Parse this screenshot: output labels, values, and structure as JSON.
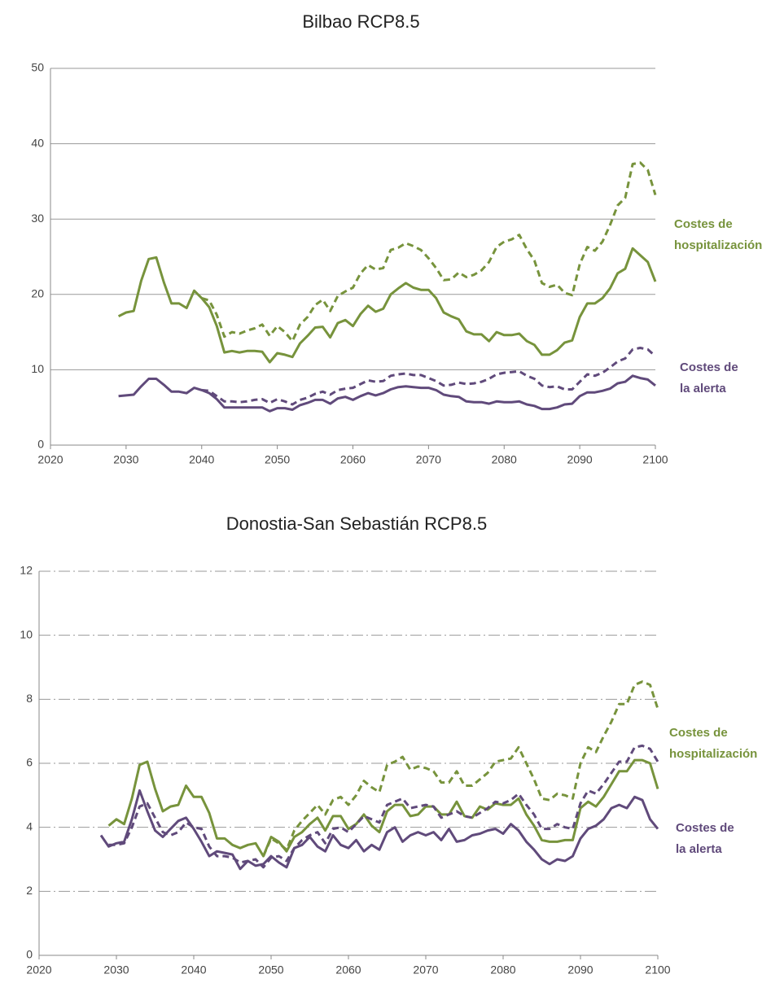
{
  "chart_data": [
    {
      "type": "line",
      "title": "Bilbao RCP8.5",
      "xlim": [
        2020,
        2100
      ],
      "xticks": [
        2020,
        2030,
        2040,
        2050,
        2060,
        2070,
        2080,
        2090,
        2100
      ],
      "ylim": [
        0,
        50
      ],
      "yticks": [
        0,
        10,
        20,
        30,
        40,
        50
      ],
      "grid": true,
      "grid_style": "solid",
      "x": [
        2029,
        2030,
        2031,
        2032,
        2033,
        2034,
        2035,
        2036,
        2037,
        2038,
        2039,
        2040,
        2041,
        2042,
        2043,
        2044,
        2045,
        2046,
        2047,
        2048,
        2049,
        2050,
        2051,
        2052,
        2053,
        2054,
        2055,
        2056,
        2057,
        2058,
        2059,
        2060,
        2061,
        2062,
        2063,
        2064,
        2065,
        2066,
        2067,
        2068,
        2069,
        2070,
        2071,
        2072,
        2073,
        2074,
        2075,
        2076,
        2077,
        2078,
        2079,
        2080,
        2081,
        2082,
        2083,
        2084,
        2085,
        2086,
        2087,
        2088,
        2089,
        2090,
        2091,
        2092,
        2093,
        2094,
        2095,
        2096,
        2097,
        2098,
        2099,
        2100
      ],
      "series": [
        {
          "color": "#77933c",
          "dash": true,
          "values": [
            null,
            null,
            null,
            null,
            null,
            null,
            null,
            null,
            null,
            null,
            null,
            19.5,
            19.2,
            17.3,
            14.4,
            15.0,
            14.8,
            15.2,
            15.5,
            16.0,
            14.5,
            15.8,
            15.0,
            13.8,
            16.0,
            17.0,
            18.6,
            19.3,
            17.8,
            19.8,
            20.4,
            20.9,
            22.8,
            23.9,
            23.3,
            23.5,
            25.9,
            26.2,
            26.8,
            26.4,
            25.9,
            24.8,
            23.5,
            21.9,
            22.0,
            22.9,
            22.3,
            22.6,
            23.2,
            24.3,
            26.3,
            27.0,
            27.3,
            27.9,
            26.0,
            24.5,
            21.5,
            21.0,
            21.3,
            20.2,
            19.9,
            24.0,
            26.3,
            25.8,
            27.0,
            29.2,
            31.8,
            32.8,
            37.3,
            37.5,
            36.5,
            33.2
          ]
        },
        {
          "color": "#77933c",
          "dash": false,
          "values": [
            17.1,
            17.6,
            17.8,
            21.8,
            24.7,
            24.9,
            21.6,
            18.8,
            18.8,
            18.2,
            20.5,
            19.5,
            18.3,
            15.8,
            12.3,
            12.5,
            12.3,
            12.5,
            12.5,
            12.4,
            11.0,
            12.2,
            12.0,
            11.7,
            13.5,
            14.5,
            15.6,
            15.7,
            14.3,
            16.2,
            16.6,
            15.8,
            17.4,
            18.5,
            17.7,
            18.1,
            20.0,
            20.8,
            21.5,
            20.9,
            20.6,
            20.6,
            19.5,
            17.6,
            17.1,
            16.7,
            15.1,
            14.7,
            14.7,
            13.8,
            15.0,
            14.6,
            14.6,
            14.8,
            13.8,
            13.3,
            12.0,
            12.0,
            12.6,
            13.6,
            13.9,
            17.0,
            18.8,
            18.8,
            19.5,
            20.8,
            22.8,
            23.4,
            26.1,
            25.2,
            24.3,
            21.7
          ]
        },
        {
          "color": "#604a7b",
          "dash": true,
          "values": [
            null,
            null,
            null,
            null,
            null,
            null,
            null,
            null,
            null,
            null,
            null,
            7.3,
            7.2,
            6.5,
            5.8,
            5.8,
            5.7,
            5.8,
            6.0,
            6.1,
            5.6,
            6.1,
            5.8,
            5.4,
            6.0,
            6.3,
            6.8,
            7.1,
            6.7,
            7.3,
            7.5,
            7.6,
            8.1,
            8.6,
            8.4,
            8.5,
            9.2,
            9.4,
            9.5,
            9.3,
            9.3,
            8.9,
            8.5,
            7.9,
            8.0,
            8.3,
            8.1,
            8.2,
            8.4,
            8.8,
            9.4,
            9.6,
            9.7,
            9.8,
            9.2,
            8.8,
            7.9,
            7.7,
            7.8,
            7.4,
            7.4,
            8.4,
            9.4,
            9.2,
            9.6,
            10.3,
            11.1,
            11.5,
            12.7,
            12.9,
            12.7,
            11.8
          ]
        },
        {
          "color": "#604a7b",
          "dash": false,
          "values": [
            6.5,
            6.6,
            6.7,
            7.8,
            8.8,
            8.8,
            8.0,
            7.1,
            7.1,
            6.9,
            7.6,
            7.3,
            6.9,
            6.1,
            5.0,
            5.0,
            5.0,
            5.0,
            5.0,
            5.0,
            4.5,
            4.9,
            4.9,
            4.7,
            5.3,
            5.6,
            6.0,
            6.0,
            5.5,
            6.2,
            6.4,
            6.0,
            6.5,
            6.9,
            6.6,
            6.9,
            7.4,
            7.7,
            7.8,
            7.7,
            7.6,
            7.6,
            7.3,
            6.7,
            6.5,
            6.4,
            5.8,
            5.7,
            5.7,
            5.5,
            5.8,
            5.7,
            5.7,
            5.8,
            5.4,
            5.2,
            4.8,
            4.8,
            5.0,
            5.4,
            5.5,
            6.5,
            7.0,
            7.0,
            7.2,
            7.5,
            8.2,
            8.4,
            9.2,
            8.9,
            8.7,
            7.9
          ]
        }
      ],
      "annotations": [
        {
          "text": "Costes de hospitalización",
          "color": "#77933c"
        },
        {
          "text": "Costes de la alerta",
          "color": "#604a7b"
        }
      ]
    },
    {
      "type": "line",
      "title": "Donostia-San Sebastián RCP8.5",
      "xlim": [
        2020,
        2100
      ],
      "xticks": [
        2020,
        2030,
        2040,
        2050,
        2060,
        2070,
        2080,
        2090,
        2100
      ],
      "ylim": [
        0,
        12
      ],
      "yticks": [
        0,
        2,
        4,
        6,
        8,
        10,
        12
      ],
      "grid": true,
      "grid_style": "dash-dot",
      "x": [
        2028,
        2029,
        2030,
        2031,
        2032,
        2033,
        2034,
        2035,
        2036,
        2037,
        2038,
        2039,
        2040,
        2041,
        2042,
        2043,
        2044,
        2045,
        2046,
        2047,
        2048,
        2049,
        2050,
        2051,
        2052,
        2053,
        2054,
        2055,
        2056,
        2057,
        2058,
        2059,
        2060,
        2061,
        2062,
        2063,
        2064,
        2065,
        2066,
        2067,
        2068,
        2069,
        2070,
        2071,
        2072,
        2073,
        2074,
        2075,
        2076,
        2077,
        2078,
        2079,
        2080,
        2081,
        2082,
        2083,
        2084,
        2085,
        2086,
        2087,
        2088,
        2089,
        2090,
        2091,
        2092,
        2093,
        2094,
        2095,
        2096,
        2097,
        2098,
        2099,
        2100
      ],
      "series": [
        {
          "color": "#77933c",
          "dash": true,
          "values": [
            null,
            null,
            null,
            null,
            null,
            null,
            null,
            null,
            null,
            null,
            null,
            null,
            null,
            null,
            null,
            null,
            null,
            null,
            null,
            null,
            null,
            3.1,
            3.65,
            3.5,
            3.3,
            3.9,
            4.2,
            4.45,
            4.7,
            4.4,
            4.85,
            4.95,
            4.7,
            5.0,
            5.45,
            5.25,
            5.1,
            5.95,
            6.05,
            6.2,
            5.8,
            5.9,
            5.85,
            5.75,
            5.4,
            5.4,
            5.75,
            5.3,
            5.3,
            5.5,
            5.7,
            6.05,
            6.1,
            6.15,
            6.5,
            6.0,
            5.5,
            4.9,
            4.85,
            5.05,
            5.0,
            4.9,
            6.0,
            6.5,
            6.35,
            6.85,
            7.3,
            7.85,
            7.85,
            8.45,
            8.55,
            8.45,
            7.7
          ]
        },
        {
          "color": "#77933c",
          "dash": false,
          "values": [
            null,
            4.05,
            4.25,
            4.1,
            4.9,
            5.95,
            6.05,
            5.2,
            4.5,
            4.65,
            4.7,
            5.3,
            4.95,
            4.95,
            4.45,
            3.65,
            3.65,
            3.45,
            3.35,
            3.45,
            3.5,
            3.1,
            3.7,
            3.55,
            3.25,
            3.7,
            3.85,
            4.1,
            4.3,
            3.9,
            4.35,
            4.35,
            3.95,
            4.1,
            4.4,
            4.05,
            3.85,
            4.5,
            4.7,
            4.7,
            4.35,
            4.4,
            4.65,
            4.65,
            4.4,
            4.4,
            4.8,
            4.35,
            4.3,
            4.65,
            4.55,
            4.75,
            4.7,
            4.7,
            4.9,
            4.4,
            4.05,
            3.6,
            3.55,
            3.55,
            3.6,
            3.6,
            4.6,
            4.8,
            4.65,
            4.95,
            5.35,
            5.75,
            5.75,
            6.1,
            6.1,
            6.0,
            5.2
          ]
        },
        {
          "color": "#604a7b",
          "dash": true,
          "values": [
            null,
            3.45,
            3.45,
            3.5,
            4.0,
            4.65,
            4.75,
            4.3,
            3.85,
            3.75,
            3.85,
            4.15,
            4.0,
            3.95,
            3.4,
            3.1,
            3.1,
            3.05,
            2.9,
            2.95,
            3.0,
            2.75,
            3.05,
            3.1,
            2.95,
            3.35,
            3.6,
            3.75,
            3.85,
            3.5,
            3.95,
            4.0,
            3.85,
            4.1,
            4.35,
            4.25,
            4.15,
            4.7,
            4.8,
            4.9,
            4.6,
            4.65,
            4.7,
            4.65,
            4.3,
            4.4,
            4.5,
            4.35,
            4.3,
            4.45,
            4.6,
            4.8,
            4.75,
            4.85,
            5.05,
            4.7,
            4.4,
            3.95,
            3.95,
            4.1,
            4.0,
            3.95,
            4.75,
            5.15,
            5.05,
            5.35,
            5.7,
            6.05,
            6.05,
            6.5,
            6.55,
            6.45,
            6.05
          ]
        },
        {
          "color": "#604a7b",
          "dash": false,
          "values": [
            3.75,
            3.4,
            3.5,
            3.55,
            4.25,
            5.15,
            4.5,
            3.9,
            3.7,
            3.95,
            4.2,
            4.3,
            3.95,
            3.55,
            3.1,
            3.25,
            3.2,
            3.15,
            2.7,
            2.95,
            2.8,
            2.85,
            3.1,
            2.9,
            2.75,
            3.35,
            3.45,
            3.7,
            3.4,
            3.25,
            3.75,
            3.45,
            3.35,
            3.6,
            3.25,
            3.45,
            3.3,
            3.85,
            4.0,
            3.55,
            3.75,
            3.85,
            3.75,
            3.85,
            3.6,
            3.95,
            3.55,
            3.6,
            3.75,
            3.8,
            3.9,
            3.95,
            3.8,
            4.1,
            3.9,
            3.55,
            3.3,
            3.0,
            2.85,
            3.0,
            2.95,
            3.1,
            3.65,
            3.95,
            4.05,
            4.25,
            4.6,
            4.7,
            4.6,
            4.95,
            4.85,
            4.25,
            3.95
          ]
        }
      ],
      "annotations": [
        {
          "text": "Costes de hospitalización",
          "color": "#77933c"
        },
        {
          "text": "Costes de la alerta",
          "color": "#604a7b"
        }
      ]
    }
  ]
}
